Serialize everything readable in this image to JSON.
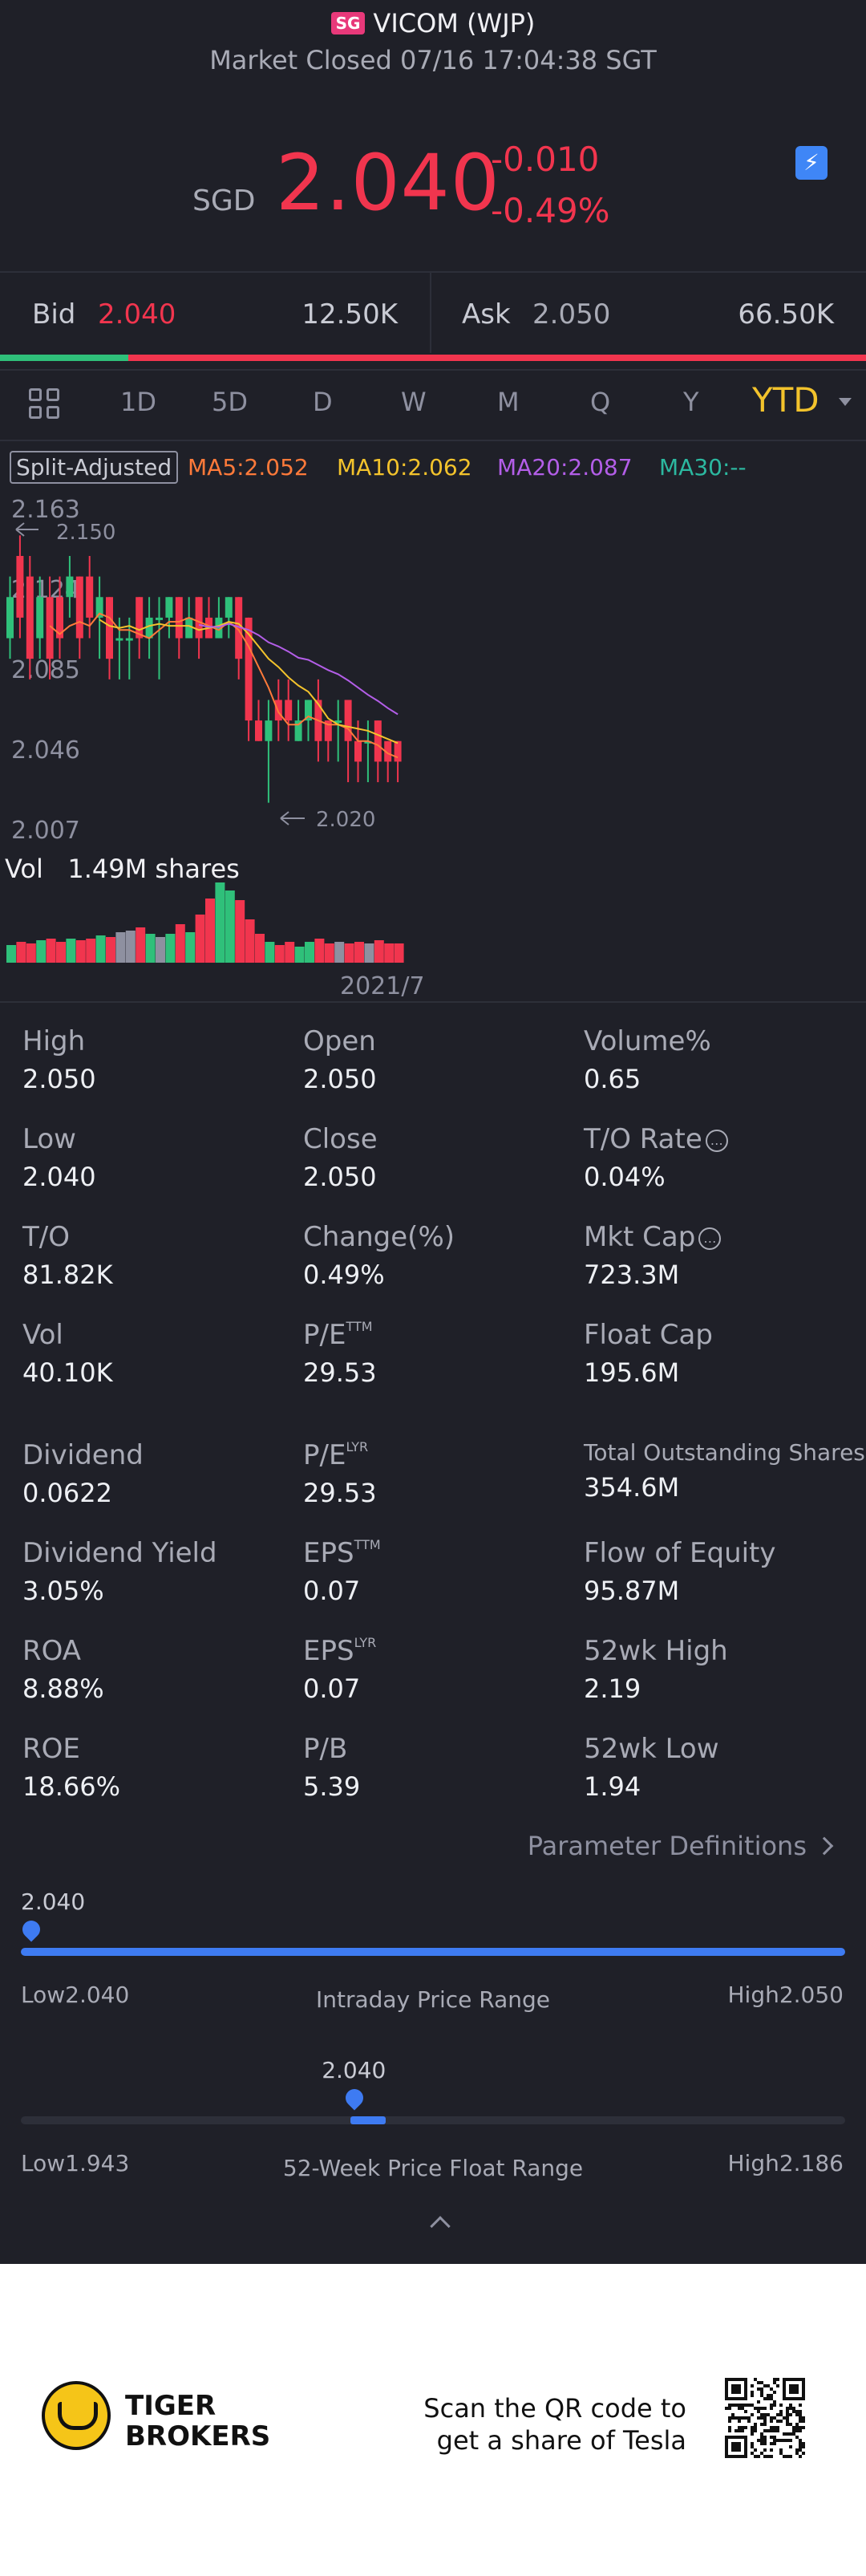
{
  "header": {
    "market_badge": "SG",
    "title": "VICOM (WJP)",
    "subtitle": "Market Closed 07/16 17:04:38 SGT"
  },
  "quote": {
    "currency": "SGD",
    "price": "2.040",
    "change": "-0.010",
    "change_pct": "-0.49%",
    "up_color": "#2fc07a",
    "down_color": "#f1354e"
  },
  "order_book": {
    "bid_label": "Bid",
    "bid_price": "2.040",
    "bid_qty": "12.50K",
    "ask_label": "Ask",
    "ask_price": "2.050",
    "ask_qty": "66.50K"
  },
  "period_tabs": [
    "1D",
    "5D",
    "D",
    "W",
    "M",
    "Q",
    "Y",
    "YTD"
  ],
  "active_tab": "YTD",
  "indicators": {
    "split_label": "Split-Adjusted",
    "ma5": "MA5:2.052",
    "ma10": "MA10:2.062",
    "ma20": "MA20:2.087",
    "ma30": "MA30:--",
    "ma5_color": "#ff7a3a",
    "ma10_color": "#f3c32c",
    "ma20_color": "#b35ee8",
    "ma30_color": "#2cb8a0"
  },
  "chart_data": {
    "type": "candlestick",
    "y_ticks": [
      "2.163",
      "2.124",
      "2.085",
      "2.046",
      "2.007"
    ],
    "ylim": [
      2.007,
      2.163
    ],
    "high_marker": "2.150",
    "low_marker": "2.020",
    "volume_label": "Vol",
    "volume_value": "1.49M shares",
    "x_label": "2021/7",
    "candles": [
      {
        "o": 2.1,
        "c": 2.12,
        "h": 2.13,
        "l": 2.09
      },
      {
        "o": 2.14,
        "c": 2.11,
        "h": 2.15,
        "l": 2.1
      },
      {
        "o": 2.13,
        "c": 2.09,
        "h": 2.14,
        "l": 2.08
      },
      {
        "o": 2.1,
        "c": 2.12,
        "h": 2.13,
        "l": 2.09
      },
      {
        "o": 2.12,
        "c": 2.09,
        "h": 2.13,
        "l": 2.08
      },
      {
        "o": 2.12,
        "c": 2.1,
        "h": 2.13,
        "l": 2.09
      },
      {
        "o": 2.12,
        "c": 2.13,
        "h": 2.14,
        "l": 2.11
      },
      {
        "o": 2.13,
        "c": 2.1,
        "h": 2.13,
        "l": 2.09
      },
      {
        "o": 2.13,
        "c": 2.11,
        "h": 2.14,
        "l": 2.1
      },
      {
        "o": 2.11,
        "c": 2.12,
        "h": 2.13,
        "l": 2.09
      },
      {
        "o": 2.12,
        "c": 2.09,
        "h": 2.12,
        "l": 2.08
      },
      {
        "o": 2.1,
        "c": 2.1,
        "h": 2.11,
        "l": 2.08
      },
      {
        "o": 2.1,
        "c": 2.1,
        "h": 2.11,
        "l": 2.08
      },
      {
        "o": 2.12,
        "c": 2.1,
        "h": 2.12,
        "l": 2.09
      },
      {
        "o": 2.1,
        "c": 2.11,
        "h": 2.12,
        "l": 2.09
      },
      {
        "o": 2.11,
        "c": 2.11,
        "h": 2.12,
        "l": 2.08
      },
      {
        "o": 2.11,
        "c": 2.12,
        "h": 2.12,
        "l": 2.1
      },
      {
        "o": 2.12,
        "c": 2.1,
        "h": 2.12,
        "l": 2.09
      },
      {
        "o": 2.1,
        "c": 2.11,
        "h": 2.12,
        "l": 2.1
      },
      {
        "o": 2.12,
        "c": 2.1,
        "h": 2.12,
        "l": 2.09
      },
      {
        "o": 2.11,
        "c": 2.1,
        "h": 2.12,
        "l": 2.1
      },
      {
        "o": 2.1,
        "c": 2.11,
        "h": 2.12,
        "l": 2.1
      },
      {
        "o": 2.11,
        "c": 2.12,
        "h": 2.12,
        "l": 2.1
      },
      {
        "o": 2.12,
        "c": 2.09,
        "h": 2.12,
        "l": 2.08
      },
      {
        "o": 2.11,
        "c": 2.06,
        "h": 2.11,
        "l": 2.05
      },
      {
        "o": 2.06,
        "c": 2.05,
        "h": 2.07,
        "l": 2.05
      },
      {
        "o": 2.05,
        "c": 2.06,
        "h": 2.07,
        "l": 2.02
      },
      {
        "o": 2.07,
        "c": 2.06,
        "h": 2.08,
        "l": 2.05
      },
      {
        "o": 2.07,
        "c": 2.06,
        "h": 2.08,
        "l": 2.05
      },
      {
        "o": 2.05,
        "c": 2.06,
        "h": 2.07,
        "l": 2.05
      },
      {
        "o": 2.06,
        "c": 2.07,
        "h": 2.07,
        "l": 2.05
      },
      {
        "o": 2.07,
        "c": 2.05,
        "h": 2.08,
        "l": 2.04
      },
      {
        "o": 2.06,
        "c": 2.05,
        "h": 2.06,
        "l": 2.04
      },
      {
        "o": 2.06,
        "c": 2.06,
        "h": 2.07,
        "l": 2.04
      },
      {
        "o": 2.07,
        "c": 2.05,
        "h": 2.07,
        "l": 2.03
      },
      {
        "o": 2.05,
        "c": 2.04,
        "h": 2.06,
        "l": 2.03
      },
      {
        "o": 2.05,
        "c": 2.05,
        "h": 2.06,
        "l": 2.03
      },
      {
        "o": 2.06,
        "c": 2.04,
        "h": 2.06,
        "l": 2.03
      },
      {
        "o": 2.05,
        "c": 2.04,
        "h": 2.05,
        "l": 2.03
      },
      {
        "o": 2.05,
        "c": 2.04,
        "h": 2.05,
        "l": 2.03
      }
    ],
    "volumes": [
      22,
      26,
      24,
      28,
      30,
      26,
      30,
      28,
      30,
      34,
      32,
      38,
      40,
      44,
      36,
      32,
      36,
      48,
      38,
      60,
      80,
      100,
      90,
      78,
      54,
      36,
      26,
      22,
      26,
      20,
      26,
      30,
      24,
      26,
      24,
      26,
      24,
      28,
      24,
      24
    ]
  },
  "stats": [
    {
      "label": "High",
      "value": "2.050"
    },
    {
      "label": "Open",
      "value": "2.050"
    },
    {
      "label": "Volume%",
      "value": "0.65"
    },
    {
      "label": "Low",
      "value": "2.040"
    },
    {
      "label": "Close",
      "value": "2.050"
    },
    {
      "label": "T/O Rate",
      "value": "0.04%"
    },
    {
      "label": "T/O",
      "value": "81.82K"
    },
    {
      "label": "Change(%)",
      "value": "0.49%"
    },
    {
      "label": "Mkt Cap",
      "value": "723.3M"
    },
    {
      "label": "Vol",
      "value": "40.10K"
    },
    {
      "label": "P/E",
      "sup": "TTM",
      "value": "29.53"
    },
    {
      "label": "Float Cap",
      "value": "195.6M"
    },
    {
      "label": "Dividend",
      "value": "0.0622"
    },
    {
      "label": "P/E",
      "sup": "LYR",
      "value": "29.53"
    },
    {
      "label": "Total Outstanding Shares",
      "value": "354.6M"
    },
    {
      "label": "Dividend Yield",
      "value": "3.05%"
    },
    {
      "label": "EPS",
      "sup": "TTM",
      "value": "0.07"
    },
    {
      "label": "Flow of Equity",
      "value": "95.87M"
    },
    {
      "label": "ROA",
      "value": "8.88%"
    },
    {
      "label": "EPS",
      "sup": "LYR",
      "value": "0.07"
    },
    {
      "label": "52wk High",
      "value": "2.19"
    },
    {
      "label": "ROE",
      "value": "18.66%"
    },
    {
      "label": "P/B",
      "value": "5.39"
    },
    {
      "label": "52wk Low",
      "value": "1.94"
    }
  ],
  "param_def": "Parameter Definitions",
  "intraday_range": {
    "current": "2.040",
    "low_label": "Low2.040",
    "high_label": "High2.050",
    "title": "Intraday Price Range",
    "fill_fraction": 1.0,
    "marker_fraction": 0.0
  },
  "week52_range": {
    "current": "2.040",
    "low_label": "Low1.943",
    "high_label": "High2.186",
    "title": "52-Week Price Float Range",
    "marker_fraction": 0.4
  },
  "footer": {
    "brand_line1": "TIGER",
    "brand_line2": "BROKERS",
    "scan_line1": "Scan the QR code to",
    "scan_line2": "get a share of Tesla"
  }
}
